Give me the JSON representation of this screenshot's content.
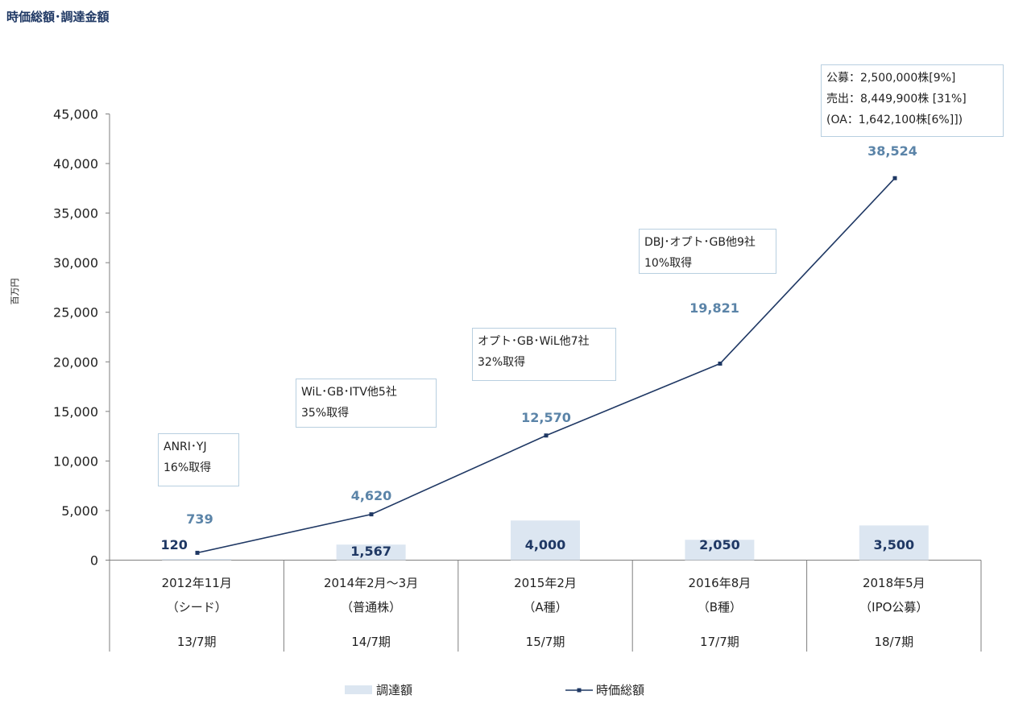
{
  "title": "時価総額･調達金額",
  "chart_data": {
    "type": "bar",
    "ylabel": "百万円",
    "ylim": [
      0,
      45000
    ],
    "yticks": [
      "0",
      "5,000",
      "10,000",
      "15,000",
      "20,000",
      "25,000",
      "30,000",
      "35,000",
      "40,000",
      "45,000"
    ],
    "categories": [
      {
        "date": "2012年11月",
        "round": "（シード）",
        "period": "13/7期"
      },
      {
        "date": "2014年2月～3月",
        "round": "（普通株）",
        "period": "14/7期"
      },
      {
        "date": "2015年2月",
        "round": "（A種）",
        "period": "15/7期"
      },
      {
        "date": "2016年8月",
        "round": "（B種）",
        "period": "17/7期"
      },
      {
        "date": "2018年5月",
        "round": "（IPO公募）",
        "period": "18/7期"
      }
    ],
    "series": [
      {
        "name": "調達額",
        "kind": "bar",
        "color": "#dce6f1",
        "label_color": "#1f3864",
        "values": [
          120,
          1567,
          4000,
          2050,
          3500
        ],
        "labels": [
          "120",
          "1,567",
          "4,000",
          "2,050",
          "3,500"
        ]
      },
      {
        "name": "時価総額",
        "kind": "line",
        "color": "#1f3864",
        "label_color": "#5b84a8",
        "values": [
          739,
          4620,
          12570,
          19821,
          38524
        ],
        "labels": [
          "739",
          "4,620",
          "12,570",
          "19,821",
          "38,524"
        ]
      }
    ],
    "annotations": [
      {
        "lines": [
          "ANRI･YJ",
          "16%取得"
        ]
      },
      {
        "lines": [
          "WiL･GB･ITV他5社",
          "35%取得"
        ]
      },
      {
        "lines": [
          "オプト･GB･WiL他7社",
          "32%取得"
        ]
      },
      {
        "lines": [
          "DBJ･オプト･GB他9社",
          "10%取得"
        ]
      },
      {
        "lines": [
          "公募：2,500,000株[9%]",
          "売出：8,449,900株 [31%]",
          "(OA：1,642,100株[6%]])"
        ]
      }
    ],
    "legend_position": "bottom"
  }
}
